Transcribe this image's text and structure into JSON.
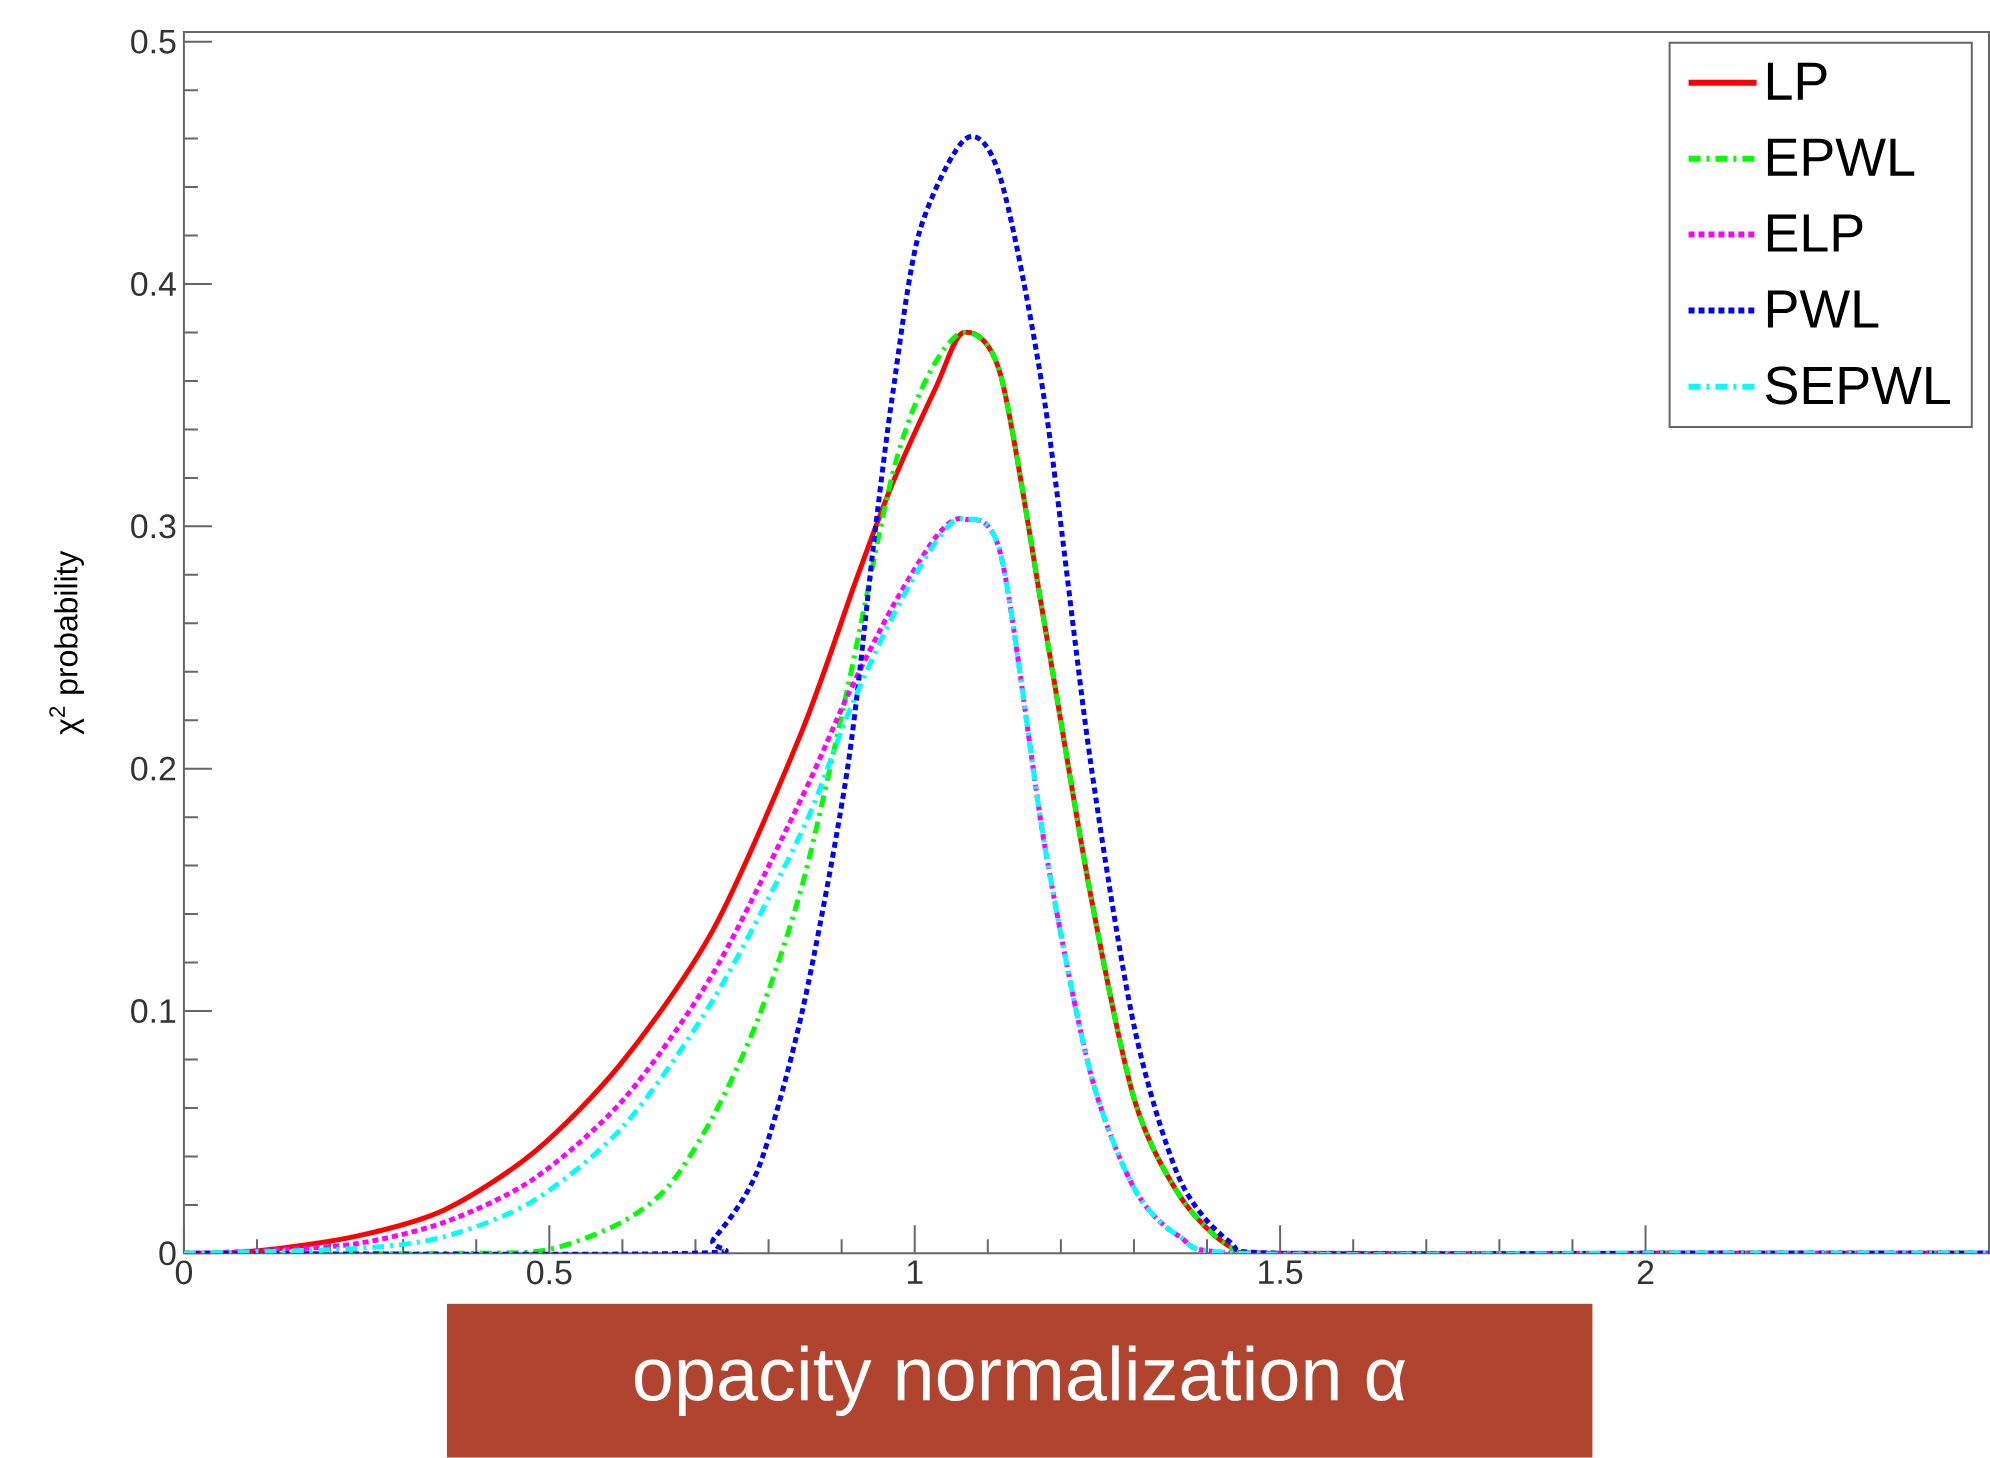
{
  "chart_data": {
    "type": "line",
    "xlabel": "opacity normalization α",
    "ylabel": "χ$^{2}$ probability",
    "xlim": [
      0,
      2.47
    ],
    "ylim": [
      0,
      0.504
    ],
    "xticks": [
      0,
      0.5,
      1,
      1.5,
      2
    ],
    "yticks": [
      0,
      0.1,
      0.2,
      0.3,
      0.4,
      0.5
    ],
    "grid": false,
    "legend": "top right",
    "series": [
      {
        "name": "LP",
        "color": "#ff0000",
        "line_style": "solid",
        "x": [
          0,
          0.1,
          0.235,
          0.357,
          0.48,
          0.6,
          0.725,
          0.845,
          0.92,
          0.97,
          1.03,
          1.067,
          1.118,
          1.178,
          1.24,
          1.3,
          1.362,
          1.43,
          1.5,
          2.0,
          2.47
        ],
        "values": [
          0,
          0.001,
          0.007,
          0.018,
          0.042,
          0.079,
          0.134,
          0.215,
          0.278,
          0.318,
          0.358,
          0.38,
          0.362,
          0.259,
          0.149,
          0.064,
          0.024,
          0.003,
          0,
          0,
          0
        ]
      },
      {
        "name": "EPWL",
        "color": "#00ff00",
        "line_style": "dashed",
        "x": [
          0,
          0.4,
          0.505,
          0.6,
          0.664,
          0.725,
          0.786,
          0.847,
          0.908,
          0.97,
          1.018,
          1.067,
          1.118,
          1.178,
          1.24,
          1.3,
          1.362,
          1.43,
          1.5,
          2.0,
          2.47
        ],
        "values": [
          0,
          0,
          0.002,
          0.013,
          0.028,
          0.057,
          0.097,
          0.153,
          0.233,
          0.322,
          0.362,
          0.38,
          0.362,
          0.259,
          0.149,
          0.064,
          0.024,
          0.003,
          0,
          0,
          0
        ]
      },
      {
        "name": "ELP",
        "color": "#ff00ff",
        "line_style": "dotted",
        "x": [
          0,
          0.1,
          0.236,
          0.358,
          0.48,
          0.603,
          0.725,
          0.847,
          0.908,
          0.97,
          1.03,
          1.067,
          1.118,
          1.178,
          1.24,
          1.3,
          1.362,
          1.45,
          2.0,
          2.47
        ],
        "values": [
          0,
          0.001,
          0.004,
          0.013,
          0.031,
          0.064,
          0.116,
          0.189,
          0.23,
          0.267,
          0.296,
          0.303,
          0.288,
          0.168,
          0.075,
          0.027,
          0.007,
          0,
          0,
          0
        ]
      },
      {
        "name": "PWL",
        "color": "#0000ff",
        "line_style": "dotted",
        "x": [
          0,
          0.69,
          0.725,
          0.786,
          0.847,
          0.908,
          0.945,
          0.97,
          1.006,
          1.07,
          1.118,
          1.178,
          1.24,
          1.3,
          1.362,
          1.43,
          1.5,
          2.0,
          2.47
        ],
        "values": [
          0,
          0,
          0.006,
          0.035,
          0.101,
          0.2,
          0.296,
          0.355,
          0.421,
          0.46,
          0.443,
          0.351,
          0.204,
          0.094,
          0.031,
          0.005,
          0,
          0,
          0
        ]
      },
      {
        "name": "SEPWL",
        "color": "#00ffff",
        "line_style": "dashed",
        "x": [
          0,
          0.236,
          0.358,
          0.48,
          0.603,
          0.725,
          0.847,
          0.908,
          0.97,
          1.03,
          1.067,
          1.118,
          1.178,
          1.24,
          1.3,
          1.362,
          1.45,
          2.0,
          2.47
        ],
        "values": [
          0,
          0.002,
          0.007,
          0.022,
          0.053,
          0.105,
          0.175,
          0.222,
          0.263,
          0.294,
          0.303,
          0.288,
          0.168,
          0.075,
          0.027,
          0.007,
          0,
          0,
          0
        ]
      }
    ]
  }
}
